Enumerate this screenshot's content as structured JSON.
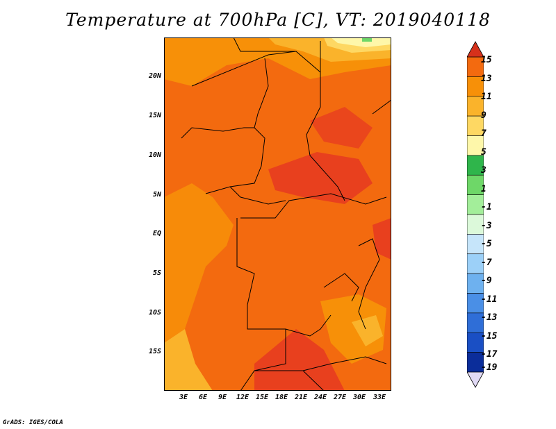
{
  "title": "Temperature at 700hPa [C], VT: 2019040118",
  "credit": "GrADS: IGES/COLA",
  "map": {
    "lat_labels": [
      "20N",
      "15N",
      "10N",
      "5N",
      "EQ",
      "5S",
      "10S",
      "15S"
    ],
    "lon_labels": [
      "3E",
      "6E",
      "9E",
      "12E",
      "15E",
      "18E",
      "21E",
      "24E",
      "27E",
      "30E",
      "33E"
    ],
    "land_border_color": "#000000"
  },
  "colorbar": {
    "labels": [
      "15",
      "13",
      "11",
      "9",
      "7",
      "5",
      "3",
      "1",
      "-1",
      "-3",
      "-5",
      "-7",
      "-9",
      "-11",
      "-13",
      "-15",
      "-17",
      "-19"
    ],
    "colors": [
      "#e8401e",
      "#f36a0f",
      "#f79008",
      "#fab32b",
      "#fed863",
      "#fef7aa",
      "#2fb54b",
      "#6ed768",
      "#a3ee9a",
      "#dcf9da",
      "#c6e5fa",
      "#9cd0f8",
      "#6eb1ef",
      "#4a8fe6",
      "#2f6ed7",
      "#1a4fc4",
      "#0b2d9a",
      "#e1daf5"
    ],
    "top_arrow_color": "#d6311b",
    "bottom_arrow_color": "#e1daf5"
  }
}
